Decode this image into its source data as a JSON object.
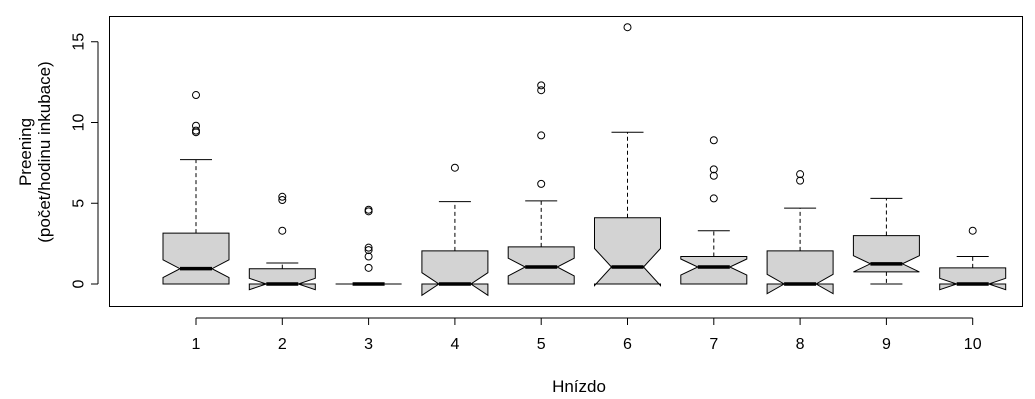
{
  "chart_data": {
    "type": "boxplot",
    "notched": true,
    "xlabel": "Hnízdo",
    "ylabel_lines": [
      "Preening",
      "(počet/hodinu inkubace)"
    ],
    "categories": [
      "1",
      "2",
      "3",
      "4",
      "5",
      "6",
      "7",
      "8",
      "9",
      "10"
    ],
    "yticks": [
      0,
      5,
      10,
      15
    ],
    "ytick_labels": [
      "0",
      "5",
      "10",
      "15"
    ],
    "ylim": [
      -1.3,
      16.6
    ],
    "box_fill": "#d3d3d3",
    "boxes": [
      {
        "cat": "1",
        "min": 0,
        "q1": 0,
        "median": 0.95,
        "q3": 3.15,
        "max": 7.7,
        "notch_low": 0.4,
        "notch_high": 1.5,
        "outliers": [
          9.4,
          9.5,
          9.8,
          11.7
        ]
      },
      {
        "cat": "2",
        "min": 0,
        "q1": 0,
        "median": 0,
        "q3": 0.95,
        "max": 1.3,
        "notch_low": -0.35,
        "notch_high": 0.35,
        "outliers": [
          3.3,
          5.2,
          5.4
        ]
      },
      {
        "cat": "3",
        "min": 0,
        "q1": 0,
        "median": 0,
        "q3": 0,
        "max": 0,
        "notch_low": 0,
        "notch_high": 0,
        "outliers": [
          1.0,
          1.7,
          2.1,
          2.25,
          4.5,
          4.6
        ]
      },
      {
        "cat": "4",
        "min": 0,
        "q1": 0,
        "median": 0,
        "q3": 2.05,
        "max": 5.1,
        "notch_low": -0.7,
        "notch_high": 0.7,
        "outliers": [
          7.2
        ]
      },
      {
        "cat": "5",
        "min": 0,
        "q1": 0,
        "median": 1.05,
        "q3": 2.3,
        "max": 5.15,
        "notch_low": 0.5,
        "notch_high": 1.6,
        "outliers": [
          6.2,
          9.2,
          12.0,
          12.3
        ]
      },
      {
        "cat": "6",
        "min": 0,
        "q1": 0,
        "median": 1.05,
        "q3": 4.1,
        "max": 9.4,
        "notch_low": -0.1,
        "notch_high": 2.2,
        "outliers": [
          15.9
        ]
      },
      {
        "cat": "7",
        "min": 0,
        "q1": 0,
        "median": 1.05,
        "q3": 1.7,
        "max": 3.3,
        "notch_low": 0.55,
        "notch_high": 1.55,
        "outliers": [
          5.3,
          6.7,
          7.1,
          8.9
        ]
      },
      {
        "cat": "8",
        "min": 0,
        "q1": 0,
        "median": 0,
        "q3": 2.05,
        "max": 4.7,
        "notch_low": -0.6,
        "notch_high": 0.6,
        "outliers": [
          6.4,
          6.8
        ]
      },
      {
        "cat": "9",
        "min": 0,
        "q1": 0.75,
        "median": 1.25,
        "q3": 3.0,
        "max": 5.3,
        "notch_low": 0.75,
        "notch_high": 1.75,
        "outliers": []
      },
      {
        "cat": "10",
        "min": 0,
        "q1": 0,
        "median": 0,
        "q3": 1.0,
        "max": 1.7,
        "notch_low": -0.35,
        "notch_high": 0.35,
        "outliers": [
          3.3
        ]
      }
    ]
  }
}
